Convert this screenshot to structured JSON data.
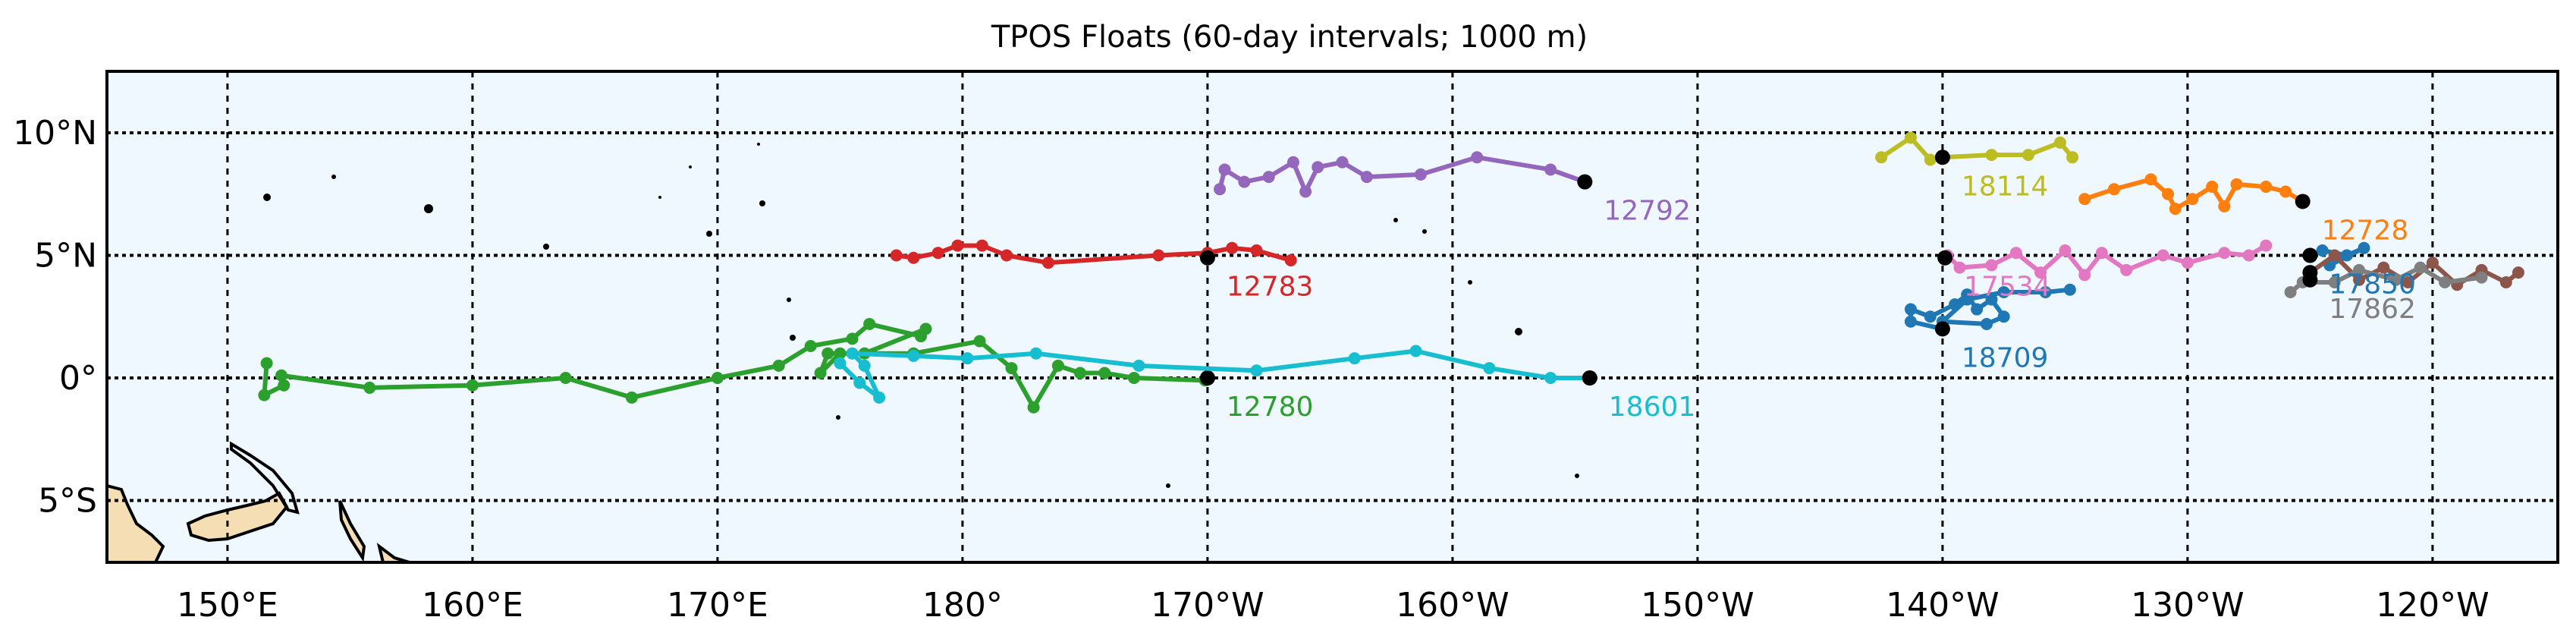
{
  "chart_data": {
    "type": "line",
    "title": "TPOS Floats (60-day intervals; 1000 m)",
    "xlabel": "",
    "ylabel": "",
    "xlim": [
      145,
      -115
    ],
    "ylim": [
      -7.5,
      12.5
    ],
    "grid": true,
    "background_color": "#f0f8ff",
    "land_color": "#f5deb3",
    "x_ticks": [
      {
        "value": 150,
        "label": "150°E"
      },
      {
        "value": 160,
        "label": "160°E"
      },
      {
        "value": 170,
        "label": "170°E"
      },
      {
        "value": 180,
        "label": "180°"
      },
      {
        "value": -170,
        "label": "170°W"
      },
      {
        "value": -160,
        "label": "160°W"
      },
      {
        "value": -150,
        "label": "150°W"
      },
      {
        "value": -140,
        "label": "140°W"
      },
      {
        "value": -130,
        "label": "130°W"
      },
      {
        "value": -120,
        "label": "120°W"
      }
    ],
    "y_ticks": [
      {
        "value": 10,
        "label": "10°N"
      },
      {
        "value": 5,
        "label": "5°N"
      },
      {
        "value": 0,
        "label": "0°"
      },
      {
        "value": -5,
        "label": "5°S"
      }
    ],
    "series": [
      {
        "name": "12780",
        "color": "#2ca02c",
        "position": [
          -170,
          0
        ],
        "points": [
          [
            151.6,
            0.6
          ],
          [
            151.5,
            -0.7
          ],
          [
            152.3,
            -0.3
          ],
          [
            152.2,
            0.1
          ],
          [
            155.8,
            -0.4
          ],
          [
            160,
            -0.3
          ],
          [
            163.8,
            0
          ],
          [
            166.5,
            -0.8
          ],
          [
            170,
            0
          ],
          [
            172.5,
            0.5
          ],
          [
            173.8,
            1.3
          ],
          [
            175.5,
            1.6
          ],
          [
            176.2,
            2.2
          ],
          [
            178.3,
            1.7
          ],
          [
            178.5,
            2.0
          ],
          [
            176,
            1.0
          ],
          [
            174.5,
            1.0
          ],
          [
            174.2,
            0.2
          ],
          [
            175,
            1.0
          ],
          [
            178,
            1.0
          ],
          [
            -179.3,
            1.5
          ],
          [
            -178,
            0.4
          ],
          [
            -177.1,
            -1.2
          ],
          [
            -176.1,
            0.5
          ],
          [
            -175.2,
            0.2
          ],
          [
            -174.2,
            0.2
          ],
          [
            -173,
            0
          ],
          [
            -170.1,
            -0.1
          ]
        ]
      },
      {
        "name": "18601",
        "color": "#17becf",
        "position": [
          -154.4,
          0
        ],
        "points": [
          [
            175,
            0.6
          ],
          [
            175.8,
            -0.2
          ],
          [
            176.6,
            -0.8
          ],
          [
            176,
            0.5
          ],
          [
            175.5,
            1.0
          ],
          [
            178,
            0.9
          ],
          [
            -179.8,
            0.8
          ],
          [
            -177,
            1.0
          ],
          [
            -172.8,
            0.5
          ],
          [
            -168,
            0.3
          ],
          [
            -164,
            0.8
          ],
          [
            -161.5,
            1.1
          ],
          [
            -158.5,
            0.4
          ],
          [
            -156,
            0
          ],
          [
            -154.4,
            0
          ]
        ]
      },
      {
        "name": "12783",
        "color": "#d62728",
        "position": [
          -170,
          4.9
        ],
        "points": [
          [
            177.3,
            5.0
          ],
          [
            178,
            4.9
          ],
          [
            179,
            5.1
          ],
          [
            179.8,
            5.4
          ],
          [
            -179.2,
            5.4
          ],
          [
            -178.2,
            5.0
          ],
          [
            -176.5,
            4.7
          ],
          [
            -172,
            5.0
          ],
          [
            -170,
            5.1
          ],
          [
            -169,
            5.3
          ],
          [
            -168,
            5.2
          ],
          [
            -166.6,
            4.8
          ]
        ]
      },
      {
        "name": "12792",
        "color": "#9467bd",
        "position": [
          -154.6,
          8.0
        ],
        "points": [
          [
            -169.5,
            7.7
          ],
          [
            -169.3,
            8.5
          ],
          [
            -168.5,
            8.0
          ],
          [
            -167.5,
            8.2
          ],
          [
            -166.5,
            8.8
          ],
          [
            -166,
            7.6
          ],
          [
            -165.5,
            8.6
          ],
          [
            -164.5,
            8.8
          ],
          [
            -163.5,
            8.2
          ],
          [
            -161.3,
            8.3
          ],
          [
            -159,
            9.0
          ],
          [
            -156,
            8.5
          ],
          [
            -154.6,
            8.0
          ]
        ]
      },
      {
        "name": "18114",
        "color": "#bcbd22",
        "position": [
          -140,
          9.0
        ],
        "points": [
          [
            -142.5,
            9.0
          ],
          [
            -141.3,
            9.8
          ],
          [
            -140.5,
            8.9
          ],
          [
            -140,
            9.0
          ],
          [
            -138,
            9.1
          ],
          [
            -136.5,
            9.1
          ],
          [
            -135.2,
            9.6
          ],
          [
            -134.7,
            9.0
          ]
        ]
      },
      {
        "name": "12728",
        "color": "#ff7f0e",
        "position": [
          -125.3,
          7.2
        ],
        "points": [
          [
            -134.2,
            7.3
          ],
          [
            -133,
            7.7
          ],
          [
            -131.5,
            8.1
          ],
          [
            -130.8,
            7.5
          ],
          [
            -130.5,
            6.9
          ],
          [
            -129.8,
            7.3
          ],
          [
            -129,
            7.8
          ],
          [
            -128.5,
            7.0
          ],
          [
            -128,
            7.9
          ],
          [
            -126.8,
            7.8
          ],
          [
            -126,
            7.6
          ],
          [
            -125.3,
            7.2
          ]
        ]
      },
      {
        "name": "17534",
        "color": "#e377c2",
        "position": [
          -139.9,
          4.9
        ],
        "points": [
          [
            -139.8,
            5.0
          ],
          [
            -139.3,
            4.5
          ],
          [
            -138,
            4.6
          ],
          [
            -137,
            5.1
          ],
          [
            -136,
            4.3
          ],
          [
            -135,
            5.2
          ],
          [
            -134.2,
            4.2
          ],
          [
            -133.5,
            5.1
          ],
          [
            -132.5,
            4.4
          ],
          [
            -131,
            5.0
          ],
          [
            -130,
            4.7
          ],
          [
            -128.5,
            5.1
          ],
          [
            -127.5,
            5.0
          ],
          [
            -126.8,
            5.4
          ]
        ]
      },
      {
        "name": "18709",
        "color": "#1f77b4",
        "position": [
          -140,
          2.0
        ],
        "points": [
          [
            -140,
            2.0
          ],
          [
            -141.3,
            2.3
          ],
          [
            -141.3,
            2.8
          ],
          [
            -140.5,
            2.5
          ],
          [
            -139.5,
            3.0
          ],
          [
            -139,
            3.4
          ],
          [
            -138.6,
            2.8
          ],
          [
            -138,
            3.2
          ],
          [
            -137.5,
            2.5
          ],
          [
            -138.2,
            2.2
          ],
          [
            -140,
            2.3
          ],
          [
            -139,
            3.2
          ],
          [
            -137.5,
            3.5
          ],
          [
            -135.8,
            3.5
          ],
          [
            -134.8,
            3.6
          ]
        ]
      },
      {
        "name": "17850",
        "color": "#1f77b4",
        "position": [
          -125,
          5.0
        ],
        "points": [
          [
            -125,
            5.0
          ],
          [
            -124.5,
            5.2
          ],
          [
            -123.5,
            5.0
          ],
          [
            -122.8,
            5.3
          ],
          [
            -124.2,
            4.6
          ]
        ]
      },
      {
        "name": "",
        "color": "#8c564b",
        "position": [
          -125,
          4.3
        ],
        "points": [
          [
            -125,
            4.3
          ],
          [
            -124,
            5.0
          ],
          [
            -123,
            4.0
          ],
          [
            -122,
            4.5
          ],
          [
            -121,
            3.9
          ],
          [
            -120,
            4.7
          ],
          [
            -119,
            3.8
          ],
          [
            -118,
            4.4
          ],
          [
            -117,
            3.9
          ],
          [
            -116.5,
            4.3
          ]
        ]
      },
      {
        "name": "17862",
        "color": "#7f7f7f",
        "position": [
          -125,
          4.0
        ],
        "points": [
          [
            -125.8,
            3.5
          ],
          [
            -125.3,
            3.9
          ],
          [
            -124,
            3.9
          ],
          [
            -123,
            4.4
          ],
          [
            -121.5,
            4.0
          ],
          [
            -120.5,
            4.5
          ],
          [
            -119.5,
            3.9
          ],
          [
            -118,
            4.1
          ]
        ]
      }
    ]
  }
}
